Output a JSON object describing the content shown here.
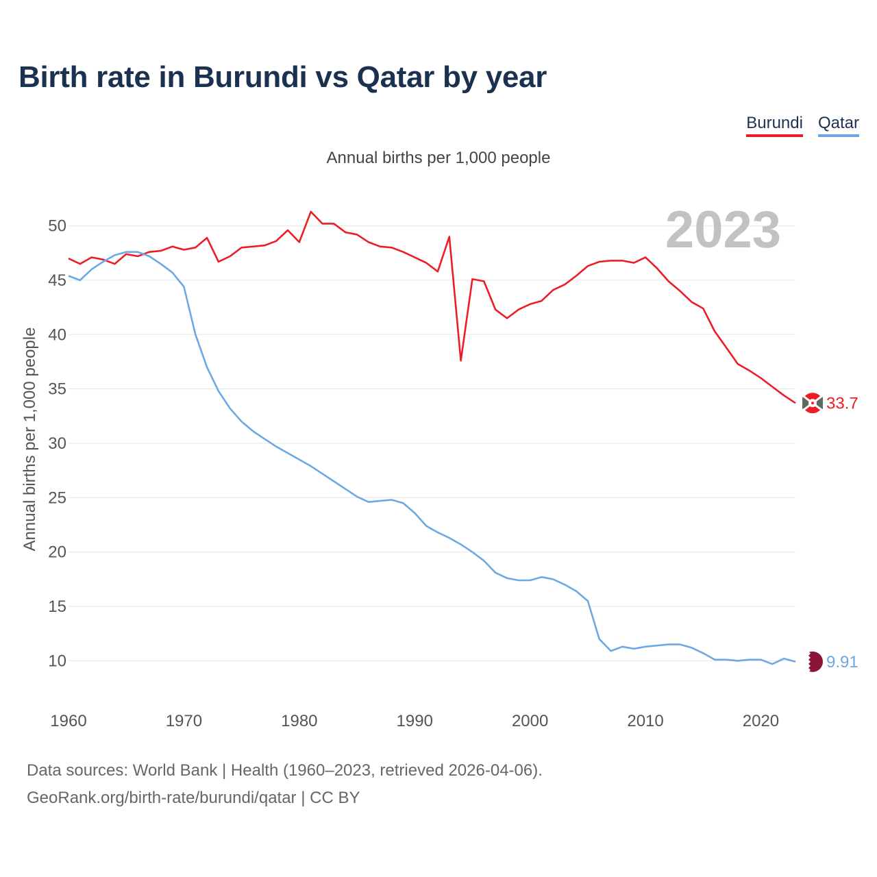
{
  "header": {
    "title": "Birth rate in Burundi vs Qatar by year",
    "subtitle": "Annual births per 1,000 people"
  },
  "legend": [
    {
      "name": "Burundi",
      "color": "#ee1c25"
    },
    {
      "name": "Qatar",
      "color": "#6aa9e3"
    }
  ],
  "footer": {
    "source_line1": "Data sources: World Bank | Health (1960–2023, retrieved 2026-04-06).",
    "source_line2": "GeoRank.org/birth-rate/burundi/qatar | CC BY"
  },
  "chart_data": {
    "type": "line",
    "title": "Birth rate in Burundi vs Qatar by year",
    "ylabel": "Annual births per 1,000 people",
    "xlabel": "",
    "year_label": "2023",
    "xlim": [
      1960,
      2023
    ],
    "ylim": [
      7,
      53
    ],
    "x_ticks": [
      1960,
      1970,
      1980,
      1990,
      2000,
      2010,
      2020
    ],
    "y_ticks": [
      10,
      15,
      20,
      25,
      30,
      35,
      40,
      45,
      50
    ],
    "grid": true,
    "legend_position": "top-right",
    "x": [
      1960,
      1961,
      1962,
      1963,
      1964,
      1965,
      1966,
      1967,
      1968,
      1969,
      1970,
      1971,
      1972,
      1973,
      1974,
      1975,
      1976,
      1977,
      1978,
      1979,
      1980,
      1981,
      1982,
      1983,
      1984,
      1985,
      1986,
      1987,
      1988,
      1989,
      1990,
      1991,
      1992,
      1993,
      1994,
      1995,
      1996,
      1997,
      1998,
      1999,
      2000,
      2001,
      2002,
      2003,
      2004,
      2005,
      2006,
      2007,
      2008,
      2009,
      2010,
      2011,
      2012,
      2013,
      2014,
      2015,
      2016,
      2017,
      2018,
      2019,
      2020,
      2021,
      2022,
      2023
    ],
    "series": [
      {
        "name": "Burundi",
        "color": "#ee1c25",
        "end_label": "33.7",
        "values": [
          47.0,
          46.5,
          47.1,
          46.9,
          46.5,
          47.4,
          47.2,
          47.6,
          47.7,
          48.1,
          47.8,
          48.0,
          48.9,
          46.7,
          47.2,
          48.0,
          48.1,
          48.2,
          48.6,
          49.6,
          48.5,
          51.3,
          50.2,
          50.2,
          49.4,
          49.2,
          48.5,
          48.1,
          48.0,
          47.6,
          47.1,
          46.6,
          45.8,
          49.0,
          37.6,
          45.1,
          44.9,
          42.3,
          41.5,
          42.3,
          42.8,
          43.1,
          44.1,
          44.6,
          45.4,
          46.3,
          46.7,
          46.8,
          46.8,
          46.6,
          47.1,
          46.1,
          44.9,
          44.0,
          43.0,
          42.4,
          40.3,
          38.8,
          37.3,
          36.7,
          36.0,
          35.2,
          34.4,
          33.7
        ]
      },
      {
        "name": "Qatar",
        "color": "#6aa9e3",
        "end_label": "9.91",
        "values": [
          45.4,
          45.0,
          46.0,
          46.7,
          47.3,
          47.6,
          47.6,
          47.2,
          46.5,
          45.7,
          44.4,
          40.0,
          37.0,
          34.8,
          33.2,
          32.0,
          31.1,
          30.4,
          29.7,
          29.1,
          28.5,
          27.9,
          27.2,
          26.5,
          25.8,
          25.1,
          24.6,
          24.7,
          24.8,
          24.5,
          23.6,
          22.4,
          21.8,
          21.3,
          20.7,
          20.0,
          19.2,
          18.1,
          17.6,
          17.4,
          17.4,
          17.7,
          17.5,
          17.0,
          16.4,
          15.5,
          12.0,
          10.9,
          11.3,
          11.1,
          11.3,
          11.4,
          11.5,
          11.5,
          11.2,
          10.7,
          10.1,
          10.1,
          10.0,
          10.1,
          10.1,
          9.7,
          10.2,
          9.91
        ]
      }
    ]
  }
}
